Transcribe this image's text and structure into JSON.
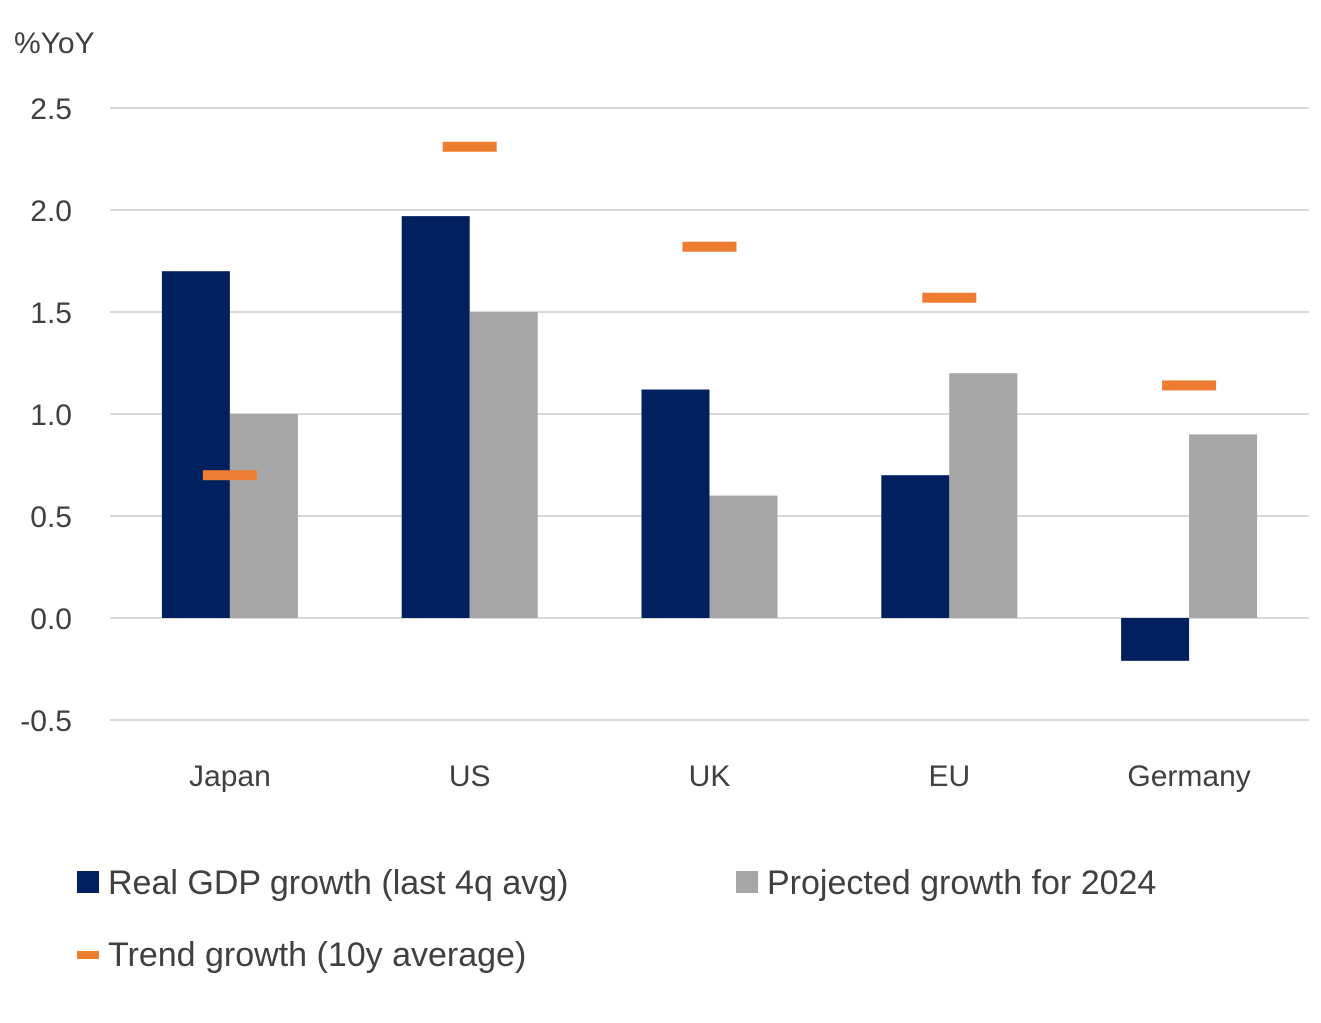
{
  "chart_data": {
    "type": "bar",
    "title": "",
    "ylabel": "%YoY",
    "xlabel": "",
    "ylim": [
      -0.5,
      2.5
    ],
    "yticks": [
      "2.5",
      "2.0",
      "1.5",
      "1.0",
      "0.5",
      "0.0",
      "-0.5"
    ],
    "ytick_values": [
      2.5,
      2.0,
      1.5,
      1.0,
      0.5,
      0.0,
      -0.5
    ],
    "grid": true,
    "legend_position": "bottom",
    "categories": [
      "Japan",
      "US",
      "UK",
      "EU",
      "Germany"
    ],
    "series": [
      {
        "name": "Real GDP growth (last 4q avg)",
        "kind": "bar",
        "color": "#002060",
        "values": [
          1.7,
          1.97,
          1.12,
          0.7,
          -0.21
        ]
      },
      {
        "name": "Projected growth for 2024",
        "kind": "bar",
        "color": "#A6A6A6",
        "values": [
          1.0,
          1.5,
          0.6,
          1.2,
          0.9
        ]
      },
      {
        "name": "Trend growth (10y average)",
        "kind": "marker",
        "color": "#ED7D31",
        "values": [
          0.7,
          2.31,
          1.82,
          1.57,
          1.14
        ]
      }
    ]
  }
}
